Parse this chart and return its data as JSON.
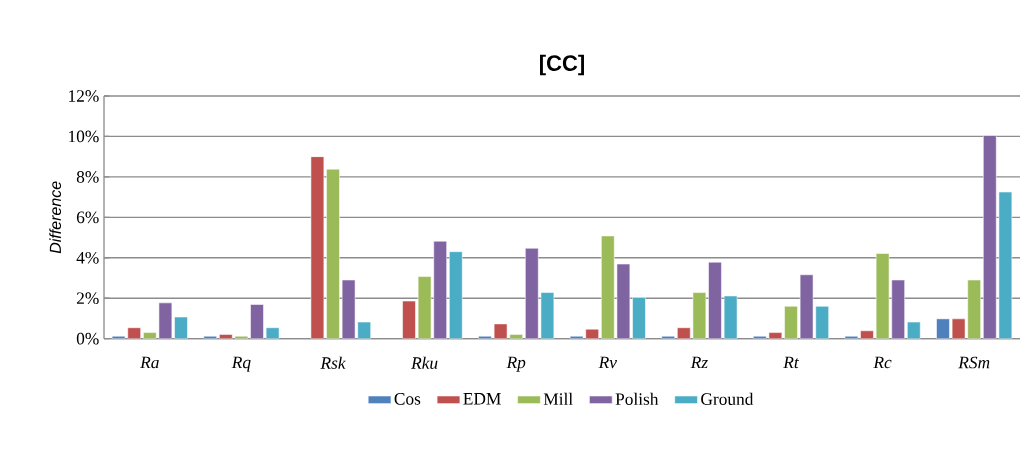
{
  "chart_data": {
    "type": "bar",
    "title": "[CC]",
    "ylabel": "Difference",
    "categories": [
      "Ra",
      "Rq",
      "Rsk",
      "Rku",
      "Rp",
      "Rv",
      "Rz",
      "Rt",
      "Rc",
      "RSm"
    ],
    "series": [
      {
        "name": "Cos",
        "color": "#4f81bd",
        "values": [
          0.12,
          0.12,
          null,
          null,
          0.12,
          0.12,
          0.12,
          0.12,
          0.12,
          0.98
        ]
      },
      {
        "name": "EDM",
        "color": "#c0504d",
        "values": [
          0.54,
          0.21,
          9.0,
          1.86,
          0.73,
          0.47,
          0.54,
          0.3,
          0.39,
          0.98
        ]
      },
      {
        "name": "Mill",
        "color": "#9bbb59",
        "values": [
          0.3,
          0.12,
          8.38,
          3.07,
          0.21,
          5.08,
          2.28,
          1.6,
          4.21,
          2.9
        ]
      },
      {
        "name": "Polish",
        "color": "#8064a2",
        "values": [
          1.77,
          1.69,
          2.9,
          4.82,
          4.47,
          3.69,
          3.78,
          3.16,
          2.9,
          10.05
        ]
      },
      {
        "name": "Ground",
        "color": "#4bacc6",
        "values": [
          1.07,
          0.54,
          0.82,
          4.3,
          2.28,
          2.04,
          2.11,
          1.6,
          0.82,
          7.25
        ]
      }
    ],
    "ylim": [
      0,
      12
    ],
    "yticks": [
      {
        "value": 0,
        "label": "0%"
      },
      {
        "value": 2,
        "label": "2%"
      },
      {
        "value": 4,
        "label": "4%"
      },
      {
        "value": 6,
        "label": "6%"
      },
      {
        "value": 8,
        "label": "8%"
      },
      {
        "value": 10,
        "label": "10%"
      },
      {
        "value": 12,
        "label": "12%"
      }
    ],
    "grid": "y",
    "legend": "bottom"
  }
}
